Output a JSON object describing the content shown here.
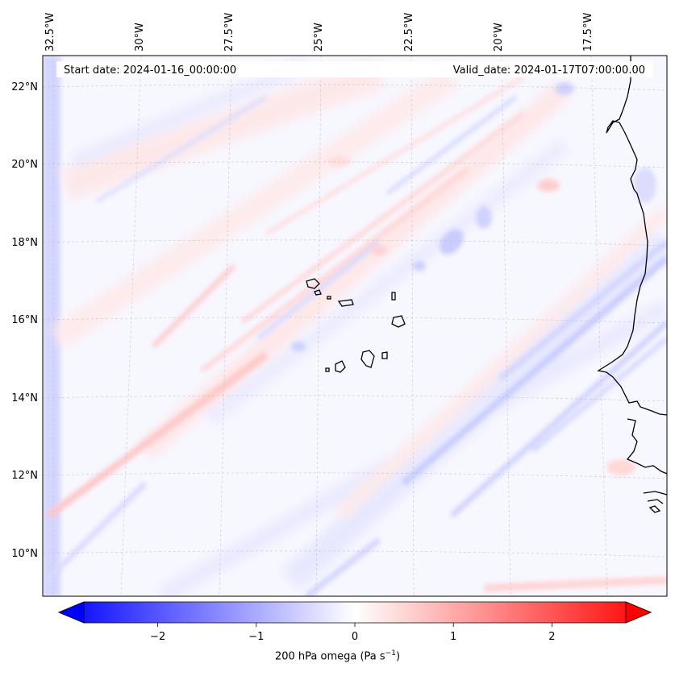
{
  "header": {
    "start_date": "Start date: 2024-01-16_00:00:00",
    "valid_date": "Valid_date: 2024-01-17T07:00:00.00"
  },
  "map": {
    "lon_ticks": [
      "32.5°W",
      "30°W",
      "27.5°W",
      "25°W",
      "22.5°W",
      "20°W",
      "17.5°W"
    ],
    "lat_ticks": [
      "22°N",
      "20°N",
      "18°N",
      "16°N",
      "14°N",
      "12°N",
      "10°N"
    ],
    "coastline_color": "#000000",
    "gridline_color": "#b0b0b0"
  },
  "colorbar": {
    "colormap": "bwr",
    "min": -2.75,
    "max": 2.75,
    "extend": "both",
    "ticks": [
      "−2",
      "−1",
      "0",
      "1",
      "2"
    ],
    "tick_values": [
      -2,
      -1,
      0,
      1,
      2
    ],
    "label_prefix": "200 hPa omega (Pa s",
    "label_exponent": "−1",
    "label_suffix": ")"
  },
  "colors": {
    "negative": "#0000ff",
    "positive": "#ff0000",
    "neutral": "#ffffff"
  }
}
